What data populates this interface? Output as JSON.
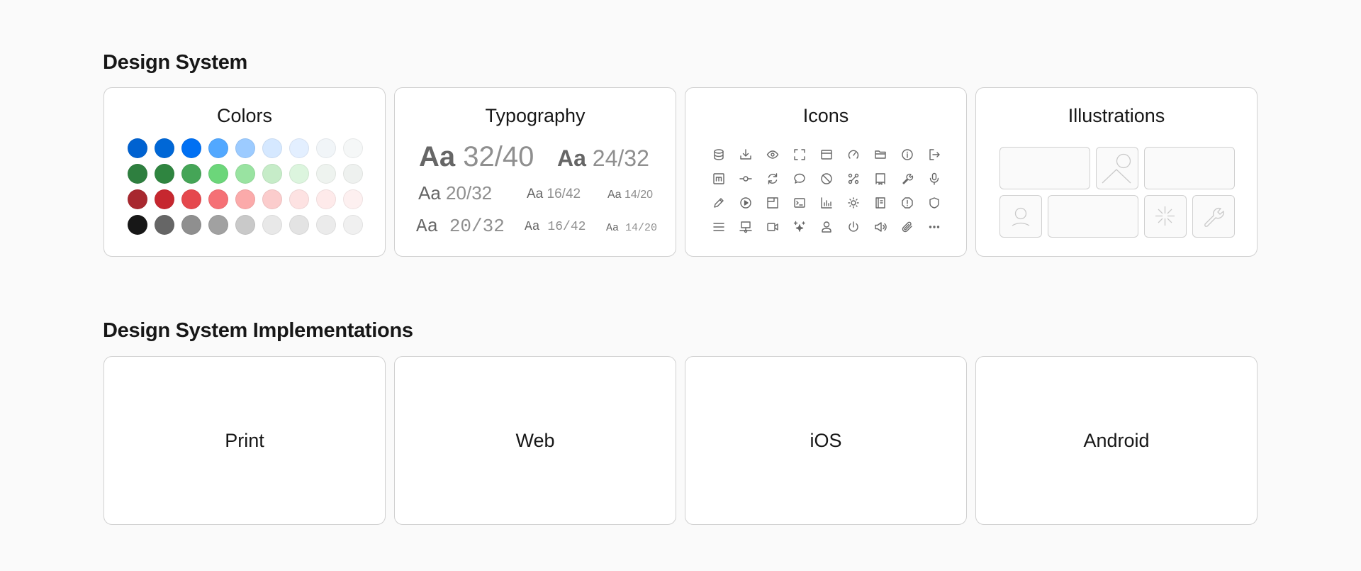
{
  "sections": [
    {
      "title": "Design System",
      "cards": [
        "Colors",
        "Typography",
        "Icons",
        "Illustrations"
      ]
    },
    {
      "title": "Design System Implementations",
      "cards": [
        "Print",
        "Web",
        "iOS",
        "Android"
      ]
    }
  ],
  "colors": [
    [
      "#0062d1",
      "#0067d6",
      "#0070f3",
      "#52a8ff",
      "#9ccbff",
      "#d5e8ff",
      "#e3efff",
      "#f1f5f8",
      "#f5f7f7"
    ],
    [
      "#2e7f3f",
      "#2f8540",
      "#45a557",
      "#6cd67a",
      "#99e3a1",
      "#c6ecc8",
      "#dcf5de",
      "#eef3ef",
      "#eef1ef"
    ],
    [
      "#a8282f",
      "#c6272f",
      "#e5484d",
      "#f57075",
      "#fbaaaa",
      "#fbcccc",
      "#fde2e2",
      "#feeaea",
      "#fdf0f0"
    ],
    [
      "#171717",
      "#666666",
      "#8f8f8f",
      "#a1a1a1",
      "#c9c9c9",
      "#e8e8e8",
      "#e3e3e3",
      "#ebebeb",
      "#f0f0f0"
    ]
  ],
  "typography": {
    "row1": [
      {
        "aa": "Aa",
        "size": "32/40"
      },
      {
        "aa": "Aa",
        "size": "24/32"
      }
    ],
    "row2": [
      {
        "aa": "Aa",
        "size": "20/32"
      },
      {
        "aa": "Aa",
        "size": "16/42"
      },
      {
        "aa": "Aa",
        "size": "14/20"
      }
    ],
    "row3": [
      {
        "aa": "Aa",
        "size": "20/32"
      },
      {
        "aa": "Aa",
        "size": "16/42"
      },
      {
        "aa": "Aa",
        "size": "14/20"
      }
    ]
  },
  "icons": [
    "database",
    "download",
    "eye",
    "fullscreen",
    "browser",
    "gauge",
    "folder-open",
    "info",
    "logout",
    "markdown",
    "git-commit",
    "refresh",
    "message",
    "blocked",
    "command",
    "bookmark-device",
    "wrench",
    "microphone",
    "pencil",
    "play",
    "notes",
    "terminal",
    "bar-chart",
    "sun",
    "book",
    "alert-octagon",
    "shield",
    "menu",
    "network",
    "video",
    "sparkles",
    "user",
    "power",
    "speaker",
    "paperclip",
    "more"
  ],
  "illustrations": [
    "blank",
    "image",
    "blank",
    "user",
    "blank",
    "loader",
    "wrench"
  ],
  "theme": {
    "border": "#d0d0d0",
    "icon": "#666666",
    "background": "#fafafa"
  }
}
